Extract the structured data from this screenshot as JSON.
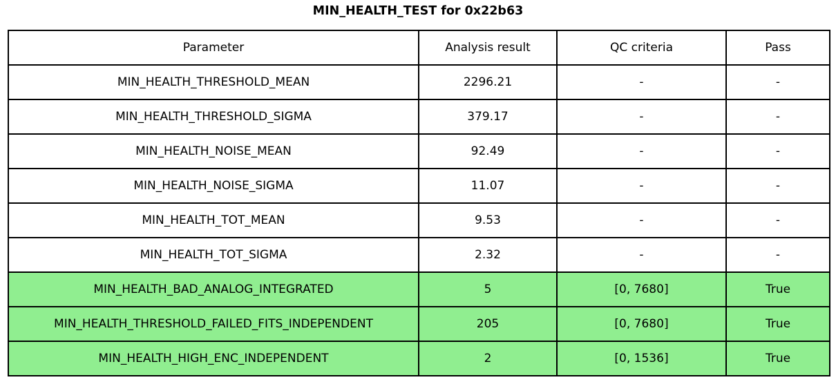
{
  "chart_data": {
    "type": "table",
    "title": "MIN_HEALTH_TEST for 0x22b63",
    "columns": [
      "Parameter",
      "Analysis result",
      "QC criteria",
      "Pass"
    ],
    "rows": [
      [
        "MIN_HEALTH_THRESHOLD_MEAN",
        "2296.21",
        "-",
        "-"
      ],
      [
        "MIN_HEALTH_THRESHOLD_SIGMA",
        "379.17",
        "-",
        "-"
      ],
      [
        "MIN_HEALTH_NOISE_MEAN",
        "92.49",
        "-",
        "-"
      ],
      [
        "MIN_HEALTH_NOISE_SIGMA",
        "11.07",
        "-",
        "-"
      ],
      [
        "MIN_HEALTH_TOT_MEAN",
        "9.53",
        "-",
        "-"
      ],
      [
        "MIN_HEALTH_TOT_SIGMA",
        "2.32",
        "-",
        "-"
      ],
      [
        "MIN_HEALTH_BAD_ANALOG_INTEGRATED",
        "5",
        "[0, 7680]",
        "True"
      ],
      [
        "MIN_HEALTH_THRESHOLD_FAILED_FITS_INDEPENDENT",
        "205",
        "[0, 7680]",
        "True"
      ],
      [
        "MIN_HEALTH_HIGH_ENC_INDEPENDENT",
        "2",
        "[0, 1536]",
        "True"
      ]
    ],
    "highlighted_rows": [
      6,
      7,
      8
    ],
    "highlight_color": "#90ee90",
    "legend_position": "none",
    "grid": "full-borders"
  },
  "colors": {
    "highlight_row_bg": "#90ee90",
    "border": "#000000",
    "text": "#000000",
    "background": "#ffffff"
  }
}
